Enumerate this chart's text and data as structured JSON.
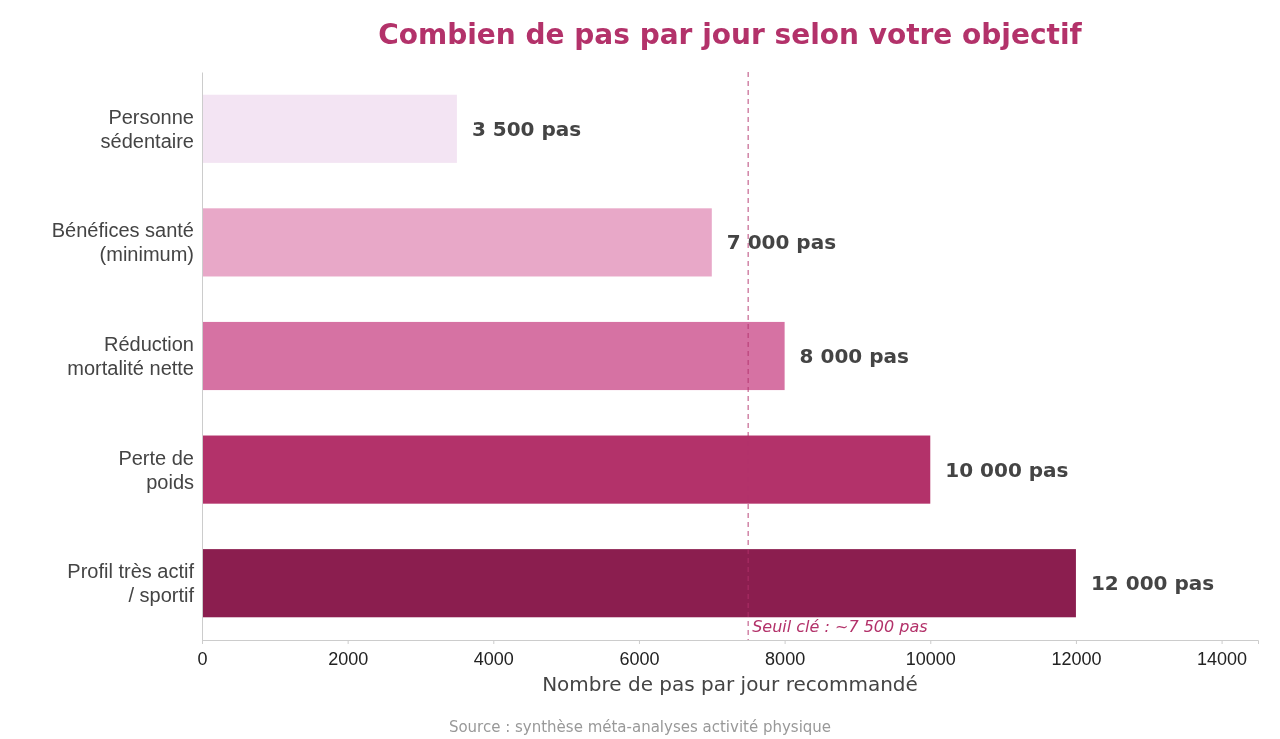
{
  "chart_data": {
    "type": "bar",
    "orientation": "horizontal",
    "title": "Combien de pas par jour selon votre objectif",
    "xlabel": "Nombre de pas par jour recommandé",
    "categories": [
      "Personne\nsédentaire",
      "Bénéfices santé\n(minimum)",
      "Réduction\nmortalité nette",
      "Perte de\npoids",
      "Profil très actif\n/ sportif"
    ],
    "values": [
      3500,
      7000,
      8000,
      10000,
      12000
    ],
    "colors": [
      "#f3e4f3",
      "#e8a8c8",
      "#d672a3",
      "#b3326a",
      "#8b1e4f"
    ],
    "value_labels": [
      "3 500 pas",
      "7 000 pas",
      "8 000 pas",
      "10 000 pas",
      "12 000 pas"
    ],
    "xlim": [
      0,
      14500
    ],
    "xticks": [
      0,
      2000,
      4000,
      6000,
      8000,
      10000,
      12000,
      14000
    ],
    "ref_lines": [
      {
        "axis": "x",
        "value": 7500,
        "label": "Seuil clé : ~7 500 pas",
        "color": "#b3326a",
        "line_style": "dashed"
      }
    ],
    "grid": false,
    "annotations": [
      "Source : synthèse méta-analyses activité physique"
    ]
  }
}
